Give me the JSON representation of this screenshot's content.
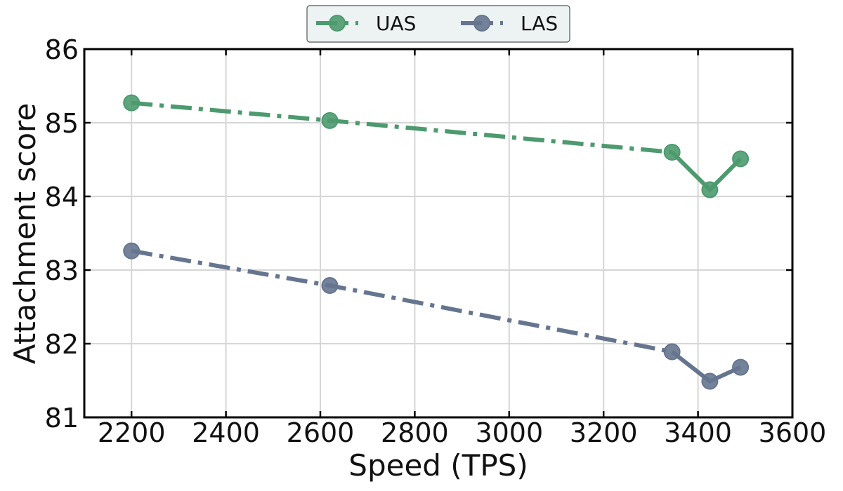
{
  "chart_data": {
    "type": "line",
    "title": "",
    "xlabel": "Speed (TPS)",
    "ylabel": "Attachment score",
    "xlim": [
      2100,
      3600
    ],
    "ylim": [
      81,
      86
    ],
    "xticks": [
      2200,
      2400,
      2600,
      2800,
      3000,
      3200,
      3400,
      3600
    ],
    "yticks": [
      81,
      82,
      83,
      84,
      85,
      86
    ],
    "grid": true,
    "legend_position": "top-center",
    "x": [
      2200,
      2620,
      3345,
      3425,
      3490
    ],
    "series": [
      {
        "name": "UAS",
        "color": "#4c9a6e",
        "values": [
          85.27,
          85.03,
          84.6,
          84.09,
          84.51
        ]
      },
      {
        "name": "LAS",
        "color": "#66758f",
        "values": [
          83.26,
          82.79,
          81.89,
          81.49,
          81.68
        ]
      }
    ]
  }
}
